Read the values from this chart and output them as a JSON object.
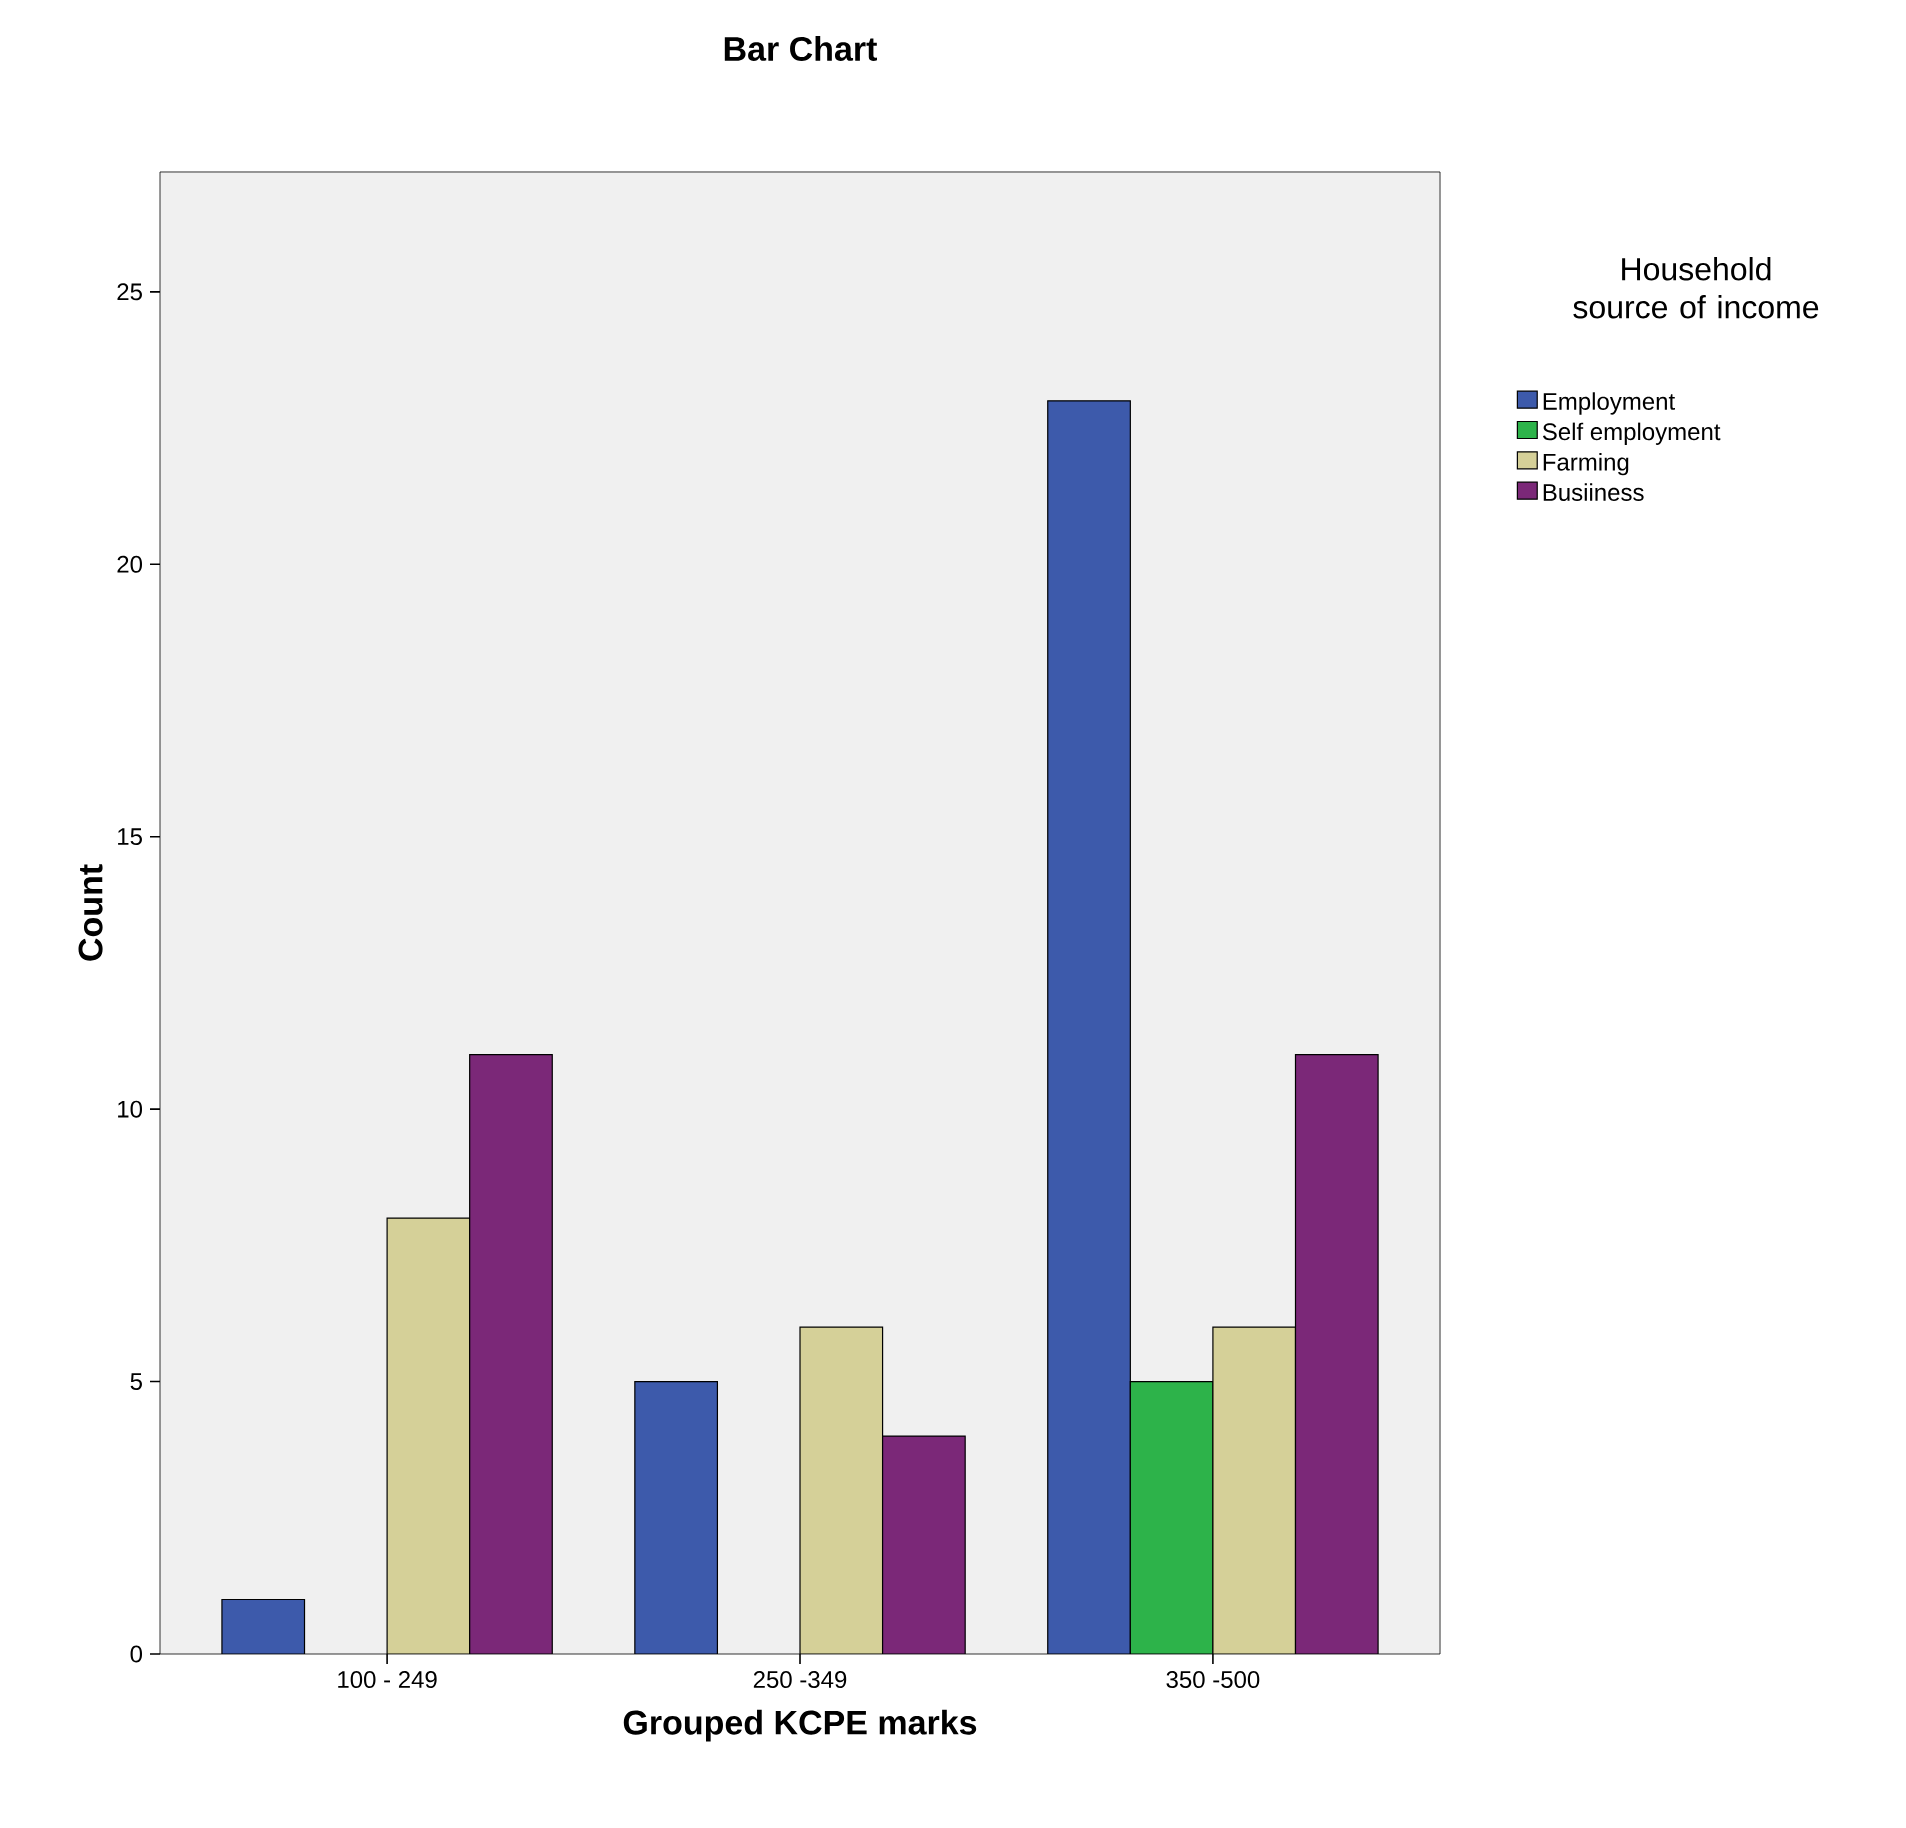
{
  "chart_data": {
    "type": "bar",
    "title": "Bar Chart",
    "xlabel": "Grouped KCPE marks",
    "ylabel": "Count",
    "legend_title": "Household source of income",
    "categories": [
      "100 - 249",
      "250 -349",
      "350 -500"
    ],
    "series": [
      {
        "name": "Employment",
        "color": "#3d5aab",
        "values": [
          1,
          5,
          23
        ]
      },
      {
        "name": "Self employment",
        "color": "#2db34a",
        "values": [
          null,
          null,
          5
        ]
      },
      {
        "name": "Farming",
        "color": "#d5d098",
        "values": [
          8,
          6,
          6
        ]
      },
      {
        "name": "Busiiness",
        "color": "#7b2878",
        "values": [
          11,
          4,
          11
        ]
      }
    ],
    "ylim": [
      0,
      27.2
    ],
    "yticks": [
      0,
      5,
      10,
      15,
      20,
      25
    ],
    "grid": false,
    "legend": "top right"
  }
}
